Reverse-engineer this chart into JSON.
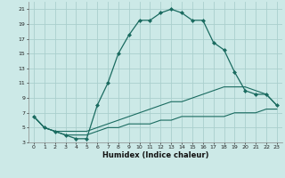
{
  "xlabel": "Humidex (Indice chaleur)",
  "ylabel": "",
  "bg_color": "#cce9e7",
  "grid_color": "#aacfcd",
  "line_color": "#1a6b60",
  "xlim": [
    -0.5,
    23.5
  ],
  "ylim": [
    3,
    22
  ],
  "xticks": [
    0,
    1,
    2,
    3,
    4,
    5,
    6,
    7,
    8,
    9,
    10,
    11,
    12,
    13,
    14,
    15,
    16,
    17,
    18,
    19,
    20,
    21,
    22,
    23
  ],
  "yticks": [
    3,
    5,
    7,
    9,
    11,
    13,
    15,
    17,
    19,
    21
  ],
  "series": [
    {
      "x": [
        0,
        1,
        2,
        3,
        4,
        5,
        6,
        7,
        8,
        9,
        10,
        11,
        12,
        13,
        14,
        15,
        16,
        17,
        18,
        19,
        20,
        21,
        22,
        23
      ],
      "y": [
        6.5,
        5,
        4.5,
        4,
        3.5,
        3.5,
        8,
        11,
        15,
        17.5,
        19.5,
        19.5,
        20.5,
        21,
        20.5,
        19.5,
        19.5,
        16.5,
        15.5,
        12.5,
        10,
        9.5,
        9.5,
        8
      ],
      "marker": "D",
      "markersize": 2.0,
      "linewidth": 0.9
    },
    {
      "x": [
        0,
        1,
        2,
        3,
        4,
        5,
        6,
        7,
        8,
        9,
        10,
        11,
        12,
        13,
        14,
        15,
        16,
        17,
        18,
        19,
        20,
        21,
        22,
        23
      ],
      "y": [
        6.5,
        5,
        4.5,
        4.5,
        4.5,
        4.5,
        5,
        5.5,
        6,
        6.5,
        7,
        7.5,
        8,
        8.5,
        8.5,
        9,
        9.5,
        10,
        10.5,
        10.5,
        10.5,
        10,
        9.5,
        8
      ],
      "marker": null,
      "linewidth": 0.8
    },
    {
      "x": [
        0,
        1,
        2,
        3,
        4,
        5,
        6,
        7,
        8,
        9,
        10,
        11,
        12,
        13,
        14,
        15,
        16,
        17,
        18,
        19,
        20,
        21,
        22,
        23
      ],
      "y": [
        6.5,
        5,
        4.5,
        4,
        4,
        4,
        4.5,
        5,
        5,
        5.5,
        5.5,
        5.5,
        6,
        6,
        6.5,
        6.5,
        6.5,
        6.5,
        6.5,
        7,
        7,
        7,
        7.5,
        7.5
      ],
      "marker": null,
      "linewidth": 0.8
    }
  ]
}
